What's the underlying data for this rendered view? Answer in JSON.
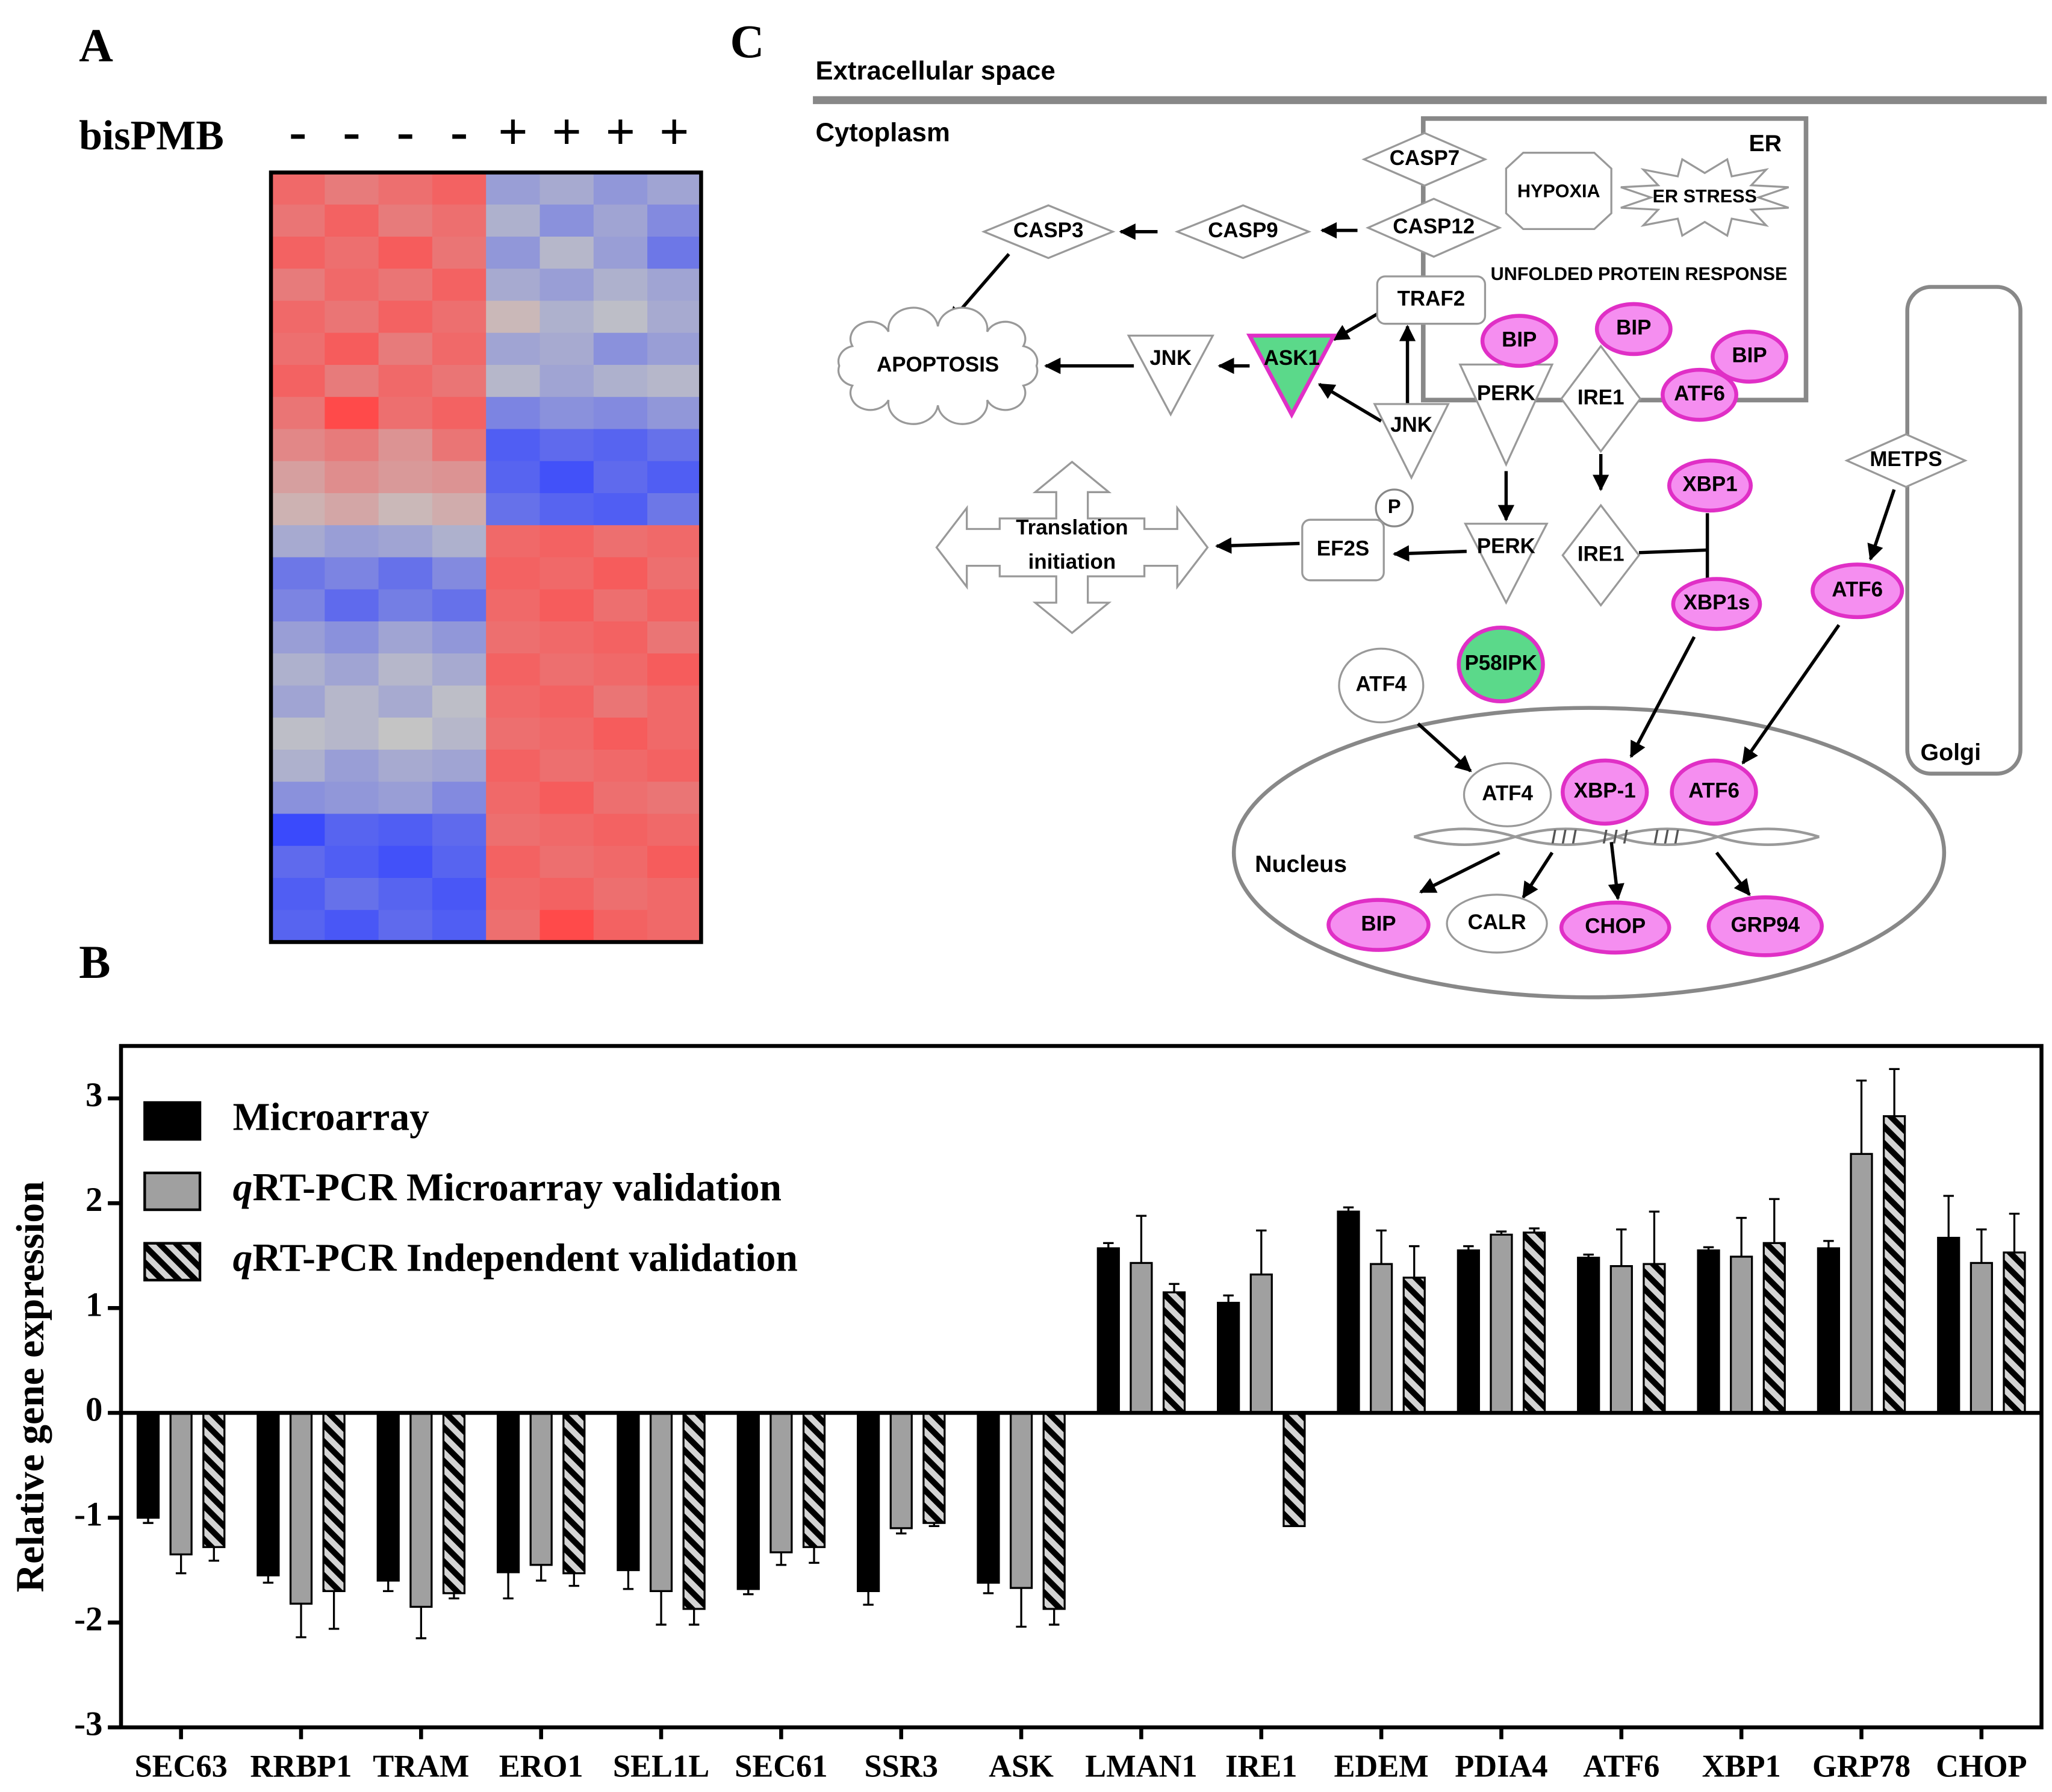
{
  "panels": [
    "A",
    "B",
    "C"
  ],
  "chart_data": [
    {
      "type": "heatmap",
      "column_group_label": "bisPMB",
      "columns": [
        "-",
        "-",
        "-",
        "-",
        "+",
        "+",
        "+",
        "+"
      ],
      "zlim": [
        -2,
        2
      ],
      "low_color": "#3344ff",
      "mid_color": "#c4c4c4",
      "high_color": "#ff4a4a",
      "values": [
        [
          1.5,
          1.2,
          1.4,
          1.6,
          -0.6,
          -0.4,
          -0.7,
          -0.5
        ],
        [
          1.3,
          1.6,
          1.2,
          1.4,
          -0.3,
          -0.8,
          -0.5,
          -0.9
        ],
        [
          1.6,
          1.4,
          1.7,
          1.3,
          -0.7,
          -0.2,
          -0.6,
          -1.2
        ],
        [
          1.2,
          1.5,
          1.3,
          1.6,
          -0.4,
          -0.6,
          -0.3,
          -0.5
        ],
        [
          1.5,
          1.3,
          1.6,
          1.4,
          0.2,
          -0.3,
          -0.1,
          -0.4
        ],
        [
          1.4,
          1.7,
          1.2,
          1.5,
          -0.5,
          -0.4,
          -0.8,
          -0.6
        ],
        [
          1.6,
          1.2,
          1.5,
          1.3,
          -0.2,
          -0.5,
          -0.3,
          -0.2
        ],
        [
          1.3,
          2.0,
          1.4,
          1.6,
          -1.0,
          -0.8,
          -0.9,
          -0.7
        ],
        [
          1.0,
          1.2,
          0.8,
          1.3,
          -1.6,
          -1.4,
          -1.5,
          -1.3
        ],
        [
          0.6,
          0.9,
          0.7,
          0.8,
          -1.5,
          -1.8,
          -1.4,
          -1.6
        ],
        [
          0.3,
          0.5,
          0.2,
          0.4,
          -1.3,
          -1.5,
          -1.6,
          -1.2
        ],
        [
          -0.4,
          -0.6,
          -0.5,
          -0.3,
          1.5,
          1.6,
          1.4,
          1.5
        ],
        [
          -1.2,
          -1.0,
          -1.3,
          -0.9,
          1.6,
          1.5,
          1.7,
          1.4
        ],
        [
          -1.0,
          -1.4,
          -1.1,
          -1.3,
          1.5,
          1.7,
          1.4,
          1.6
        ],
        [
          -0.6,
          -0.8,
          -0.5,
          -0.7,
          1.4,
          1.5,
          1.6,
          1.3
        ],
        [
          -0.3,
          -0.5,
          -0.2,
          -0.4,
          1.6,
          1.4,
          1.5,
          1.7
        ],
        [
          -0.5,
          -0.2,
          -0.4,
          -0.1,
          1.5,
          1.6,
          1.3,
          1.5
        ],
        [
          -0.1,
          -0.2,
          0.0,
          -0.2,
          1.4,
          1.5,
          1.7,
          1.5
        ],
        [
          -0.3,
          -0.6,
          -0.4,
          -0.5,
          1.6,
          1.4,
          1.5,
          1.6
        ],
        [
          -0.8,
          -0.7,
          -0.6,
          -0.9,
          1.5,
          1.7,
          1.4,
          1.3
        ],
        [
          -1.9,
          -1.5,
          -1.6,
          -1.4,
          1.4,
          1.5,
          1.6,
          1.5
        ],
        [
          -1.4,
          -1.6,
          -1.8,
          -1.5,
          1.6,
          1.4,
          1.5,
          1.7
        ],
        [
          -1.6,
          -1.3,
          -1.5,
          -1.7,
          1.5,
          1.6,
          1.4,
          1.5
        ],
        [
          -1.5,
          -1.7,
          -1.4,
          -1.6,
          1.4,
          2.0,
          1.6,
          1.5
        ]
      ]
    },
    {
      "type": "bar",
      "ylabel": "Relative gene expression",
      "categories": [
        "SEC63",
        "RRBP1",
        "TRAM",
        "ERO1",
        "SEL1L",
        "SEC61",
        "SSR3",
        "ASK",
        "LMAN1",
        "IRE1",
        "EDEM",
        "PDIA4",
        "ATF6",
        "XBP1",
        "GRP78",
        "CHOP"
      ],
      "series": [
        {
          "name": "Microarray",
          "color": "#000000",
          "values": [
            -1.0,
            -1.55,
            -1.6,
            -1.52,
            -1.5,
            -1.68,
            -1.7,
            -1.62,
            1.57,
            1.05,
            1.92,
            1.55,
            1.48,
            1.55,
            1.57,
            1.67
          ],
          "errors": [
            0.05,
            0.07,
            0.1,
            0.25,
            0.18,
            0.05,
            0.13,
            0.1,
            0.05,
            0.07,
            0.04,
            0.04,
            0.03,
            0.03,
            0.07,
            0.4
          ]
        },
        {
          "name": "qRT-PCR Microarray validation",
          "color": "#a0a0a0",
          "values": [
            -1.35,
            -1.82,
            -1.85,
            -1.45,
            -1.7,
            -1.33,
            -1.1,
            -1.67,
            1.43,
            1.32,
            1.42,
            1.7,
            1.4,
            1.49,
            2.47,
            1.43
          ],
          "errors": [
            0.18,
            0.32,
            0.3,
            0.15,
            0.32,
            0.12,
            0.05,
            0.37,
            0.45,
            0.42,
            0.32,
            0.03,
            0.35,
            0.37,
            0.7,
            0.32
          ]
        },
        {
          "name": "qRT-PCR Independent validation",
          "color": "#d4d4d4",
          "hatch": true,
          "values": [
            -1.28,
            -1.7,
            -1.72,
            -1.53,
            -1.87,
            -1.28,
            -1.05,
            -1.87,
            1.15,
            -1.08,
            1.29,
            1.72,
            1.42,
            1.62,
            2.83,
            1.53
          ],
          "errors": [
            0.13,
            0.36,
            0.05,
            0.12,
            0.15,
            0.15,
            0.03,
            0.15,
            0.08,
            null,
            0.3,
            0.04,
            0.5,
            0.42,
            0.45,
            0.37
          ]
        }
      ],
      "ylim": [
        -3,
        3.5
      ],
      "yticks": [
        -3,
        -2,
        -1,
        0,
        1,
        2,
        3
      ],
      "legend": "upper left"
    }
  ],
  "diagram": {
    "labels": [
      "Extracellular space",
      "Cytoplasm",
      "ER",
      "HYPOXIA",
      "ER STRESS",
      "UNFOLDED PROTEIN RESPONSE",
      "Golgi",
      "Nucleus",
      "P"
    ],
    "translation_initiation": [
      "Translation",
      "initiation"
    ],
    "nodes": [
      {
        "label": "CASP7"
      },
      {
        "label": "CASP12"
      },
      {
        "label": "CASP9"
      },
      {
        "label": "CASP3"
      },
      {
        "label": "APOPTOSIS"
      },
      {
        "label": "JNK"
      },
      {
        "label": "ASK1"
      },
      {
        "label": "TRAF2"
      },
      {
        "label": "JNK"
      },
      {
        "label": "PERK"
      },
      {
        "label": "IRE1"
      },
      {
        "label": "BIP"
      },
      {
        "label": "BIP"
      },
      {
        "label": "BIP"
      },
      {
        "label": "ATF6"
      },
      {
        "label": "XBP1"
      },
      {
        "label": "PERK"
      },
      {
        "label": "IRE1"
      },
      {
        "label": "EF2S"
      },
      {
        "label": "XBP1s"
      },
      {
        "label": "ATF6"
      },
      {
        "label": "METPS"
      },
      {
        "label": "P58IPK"
      },
      {
        "label": "ATF4"
      },
      {
        "label": "ATF4"
      },
      {
        "label": "XBP-1"
      },
      {
        "label": "ATF6"
      },
      {
        "label": "BIP"
      },
      {
        "label": "CALR"
      },
      {
        "label": "CHOP"
      },
      {
        "label": "GRP94"
      }
    ]
  }
}
